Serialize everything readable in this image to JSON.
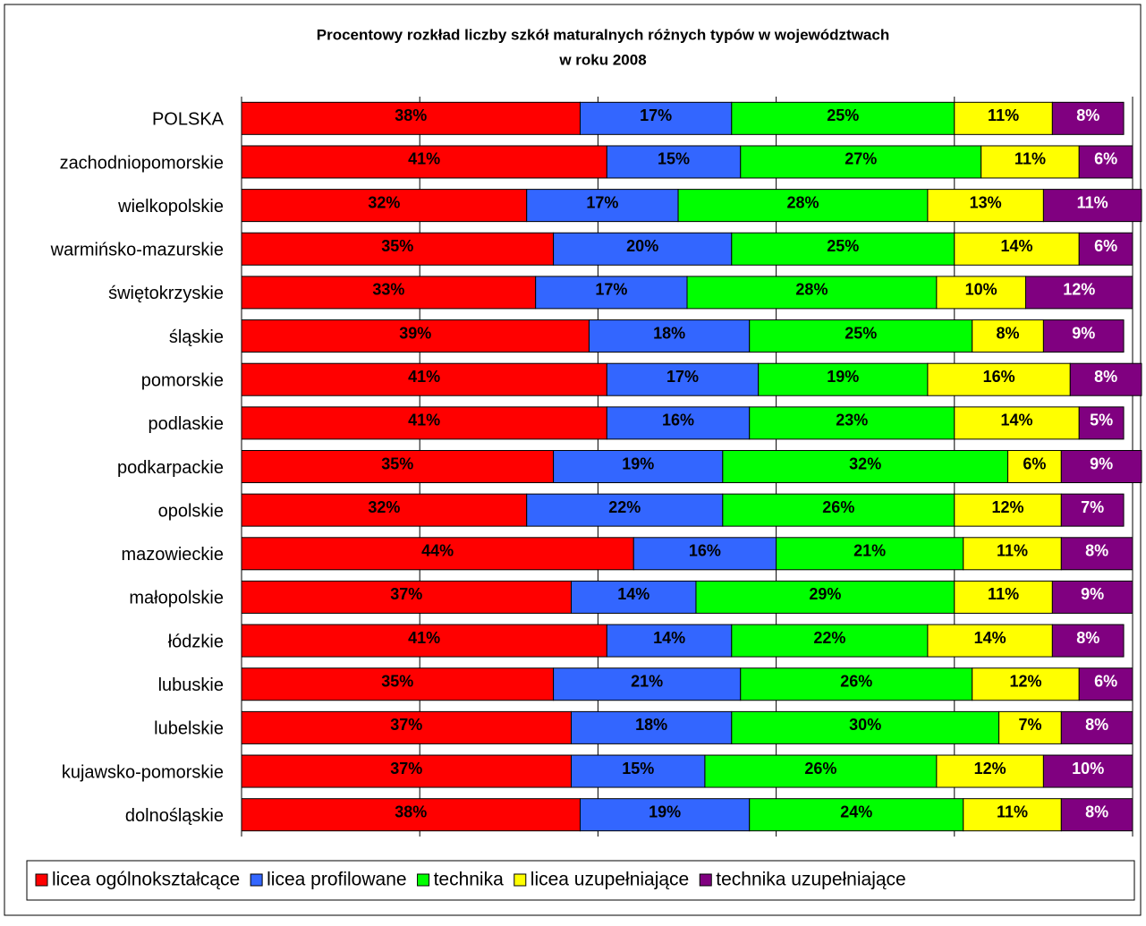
{
  "chart_data": {
    "type": "stacked_barh",
    "title": [
      "Procentowy rozkład liczby szkół maturalnych różnych typów w województwach",
      "w roku 2008"
    ],
    "categories": [
      "POLSKA",
      "zachodniopomorskie",
      "wielkopolskie",
      "warmińsko-mazurskie",
      "świętokrzyskie",
      "śląskie",
      "pomorskie",
      "podlaskie",
      "podkarpackie",
      "opolskie",
      "mazowieckie",
      "małopolskie",
      "łódzkie",
      "lubuskie",
      "lubelskie",
      "kujawsko-pomorskie",
      "dolnośląskie"
    ],
    "xlim": [
      0,
      100
    ],
    "xticks": [
      0,
      20,
      40,
      60,
      80,
      100
    ],
    "grid": true,
    "legend": "bottom",
    "series": [
      {
        "name": "licea ogólnokształcące",
        "color": "#ff0000",
        "values": [
          38,
          41,
          32,
          35,
          33,
          39,
          41,
          41,
          35,
          32,
          44,
          37,
          41,
          35,
          37,
          37,
          38
        ],
        "value_labels": [
          "38%",
          "41%",
          "32%",
          "35%",
          "33%",
          "39%",
          "41%",
          "41%",
          "35%",
          "32%",
          "44%",
          "37%",
          "41%",
          "35%",
          "37%",
          "37%",
          "38%"
        ]
      },
      {
        "name": "licea profilowane",
        "color": "#3366ff",
        "values": [
          17,
          15,
          17,
          20,
          17,
          18,
          17,
          16,
          19,
          22,
          16,
          14,
          14,
          21,
          18,
          15,
          19
        ],
        "value_labels": [
          "17%",
          "15%",
          "17%",
          "20%",
          "17%",
          "18%",
          "17%",
          "16%",
          "19%",
          "22%",
          "16%",
          "14%",
          "14%",
          "21%",
          "18%",
          "15%",
          "19%"
        ]
      },
      {
        "name": "technika",
        "color": "#00ff00",
        "values": [
          25,
          27,
          28,
          25,
          28,
          25,
          19,
          23,
          32,
          26,
          21,
          29,
          22,
          26,
          30,
          26,
          24
        ],
        "value_labels": [
          "25%",
          "27%",
          "28%",
          "25%",
          "28%",
          "25%",
          "19%",
          "23%",
          "32%",
          "26%",
          "21%",
          "29%",
          "22%",
          "26%",
          "30%",
          "26%",
          "24%"
        ]
      },
      {
        "name": "licea uzupełniające",
        "color": "#ffff00",
        "values": [
          11,
          11,
          13,
          14,
          10,
          8,
          16,
          14,
          6,
          12,
          11,
          11,
          14,
          12,
          7,
          12,
          11
        ],
        "value_labels": [
          "11%",
          "11%",
          "13%",
          "14%",
          "10%",
          "8%",
          "16%",
          "14%",
          "6%",
          "12%",
          "11%",
          "11%",
          "14%",
          "12%",
          "7%",
          "12%",
          "11%"
        ]
      },
      {
        "name": "technika uzupełniające",
        "color": "#800080",
        "values": [
          8,
          6,
          11,
          6,
          12,
          9,
          8,
          5,
          9,
          7,
          8,
          9,
          8,
          6,
          8,
          10,
          8
        ],
        "value_labels": [
          "8%",
          "6%",
          "11%",
          "6%",
          "12%",
          "9%",
          "8%",
          "5%",
          "9%",
          "7%",
          "8%",
          "9%",
          "8%",
          "6%",
          "8%",
          "10%",
          "8%"
        ]
      }
    ]
  }
}
